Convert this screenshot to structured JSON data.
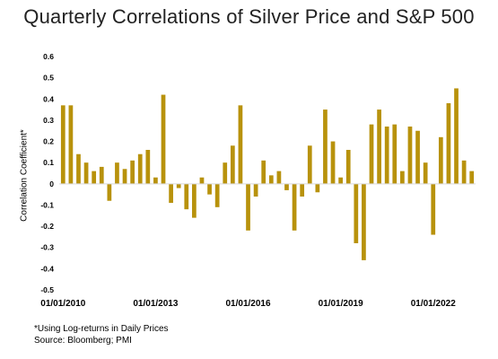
{
  "chart_data": {
    "type": "bar",
    "title": "Quarterly Correlations of Silver Price and S&P 500",
    "ylabel": "Correlation Coefficient*",
    "xlabel": "",
    "ylim": [
      -0.5,
      0.6
    ],
    "yticks": [
      "0.6",
      "0.5",
      "0.4",
      "0.3",
      "0.2",
      "0.1",
      "0",
      "-0.1",
      "-0.2",
      "-0.3",
      "-0.4",
      "-0.5"
    ],
    "xticks": [
      "01/01/2010",
      "01/01/2013",
      "01/01/2016",
      "01/01/2019",
      "01/01/2022"
    ],
    "xtick_quarters": [
      0,
      12,
      24,
      36,
      48
    ],
    "grid": false,
    "bar_color": "#b8920c",
    "values": [
      0.37,
      0.37,
      0.14,
      0.1,
      0.06,
      0.08,
      -0.08,
      0.1,
      0.07,
      0.11,
      0.14,
      0.16,
      0.03,
      0.42,
      -0.09,
      -0.02,
      -0.12,
      -0.16,
      0.03,
      -0.05,
      -0.11,
      0.1,
      0.18,
      0.37,
      -0.22,
      -0.06,
      0.11,
      0.04,
      0.06,
      -0.03,
      -0.22,
      -0.06,
      0.18,
      -0.04,
      0.35,
      0.2,
      0.03,
      0.16,
      -0.28,
      -0.36,
      0.28,
      0.35,
      0.27,
      0.28,
      0.06,
      0.27,
      0.25,
      0.1,
      -0.24,
      0.22,
      0.38,
      0.45,
      0.11,
      0.06
    ]
  },
  "footnote": {
    "line1": "*Using Log-returns in Daily Prices",
    "line2": "Source: Bloomberg; PMI"
  }
}
